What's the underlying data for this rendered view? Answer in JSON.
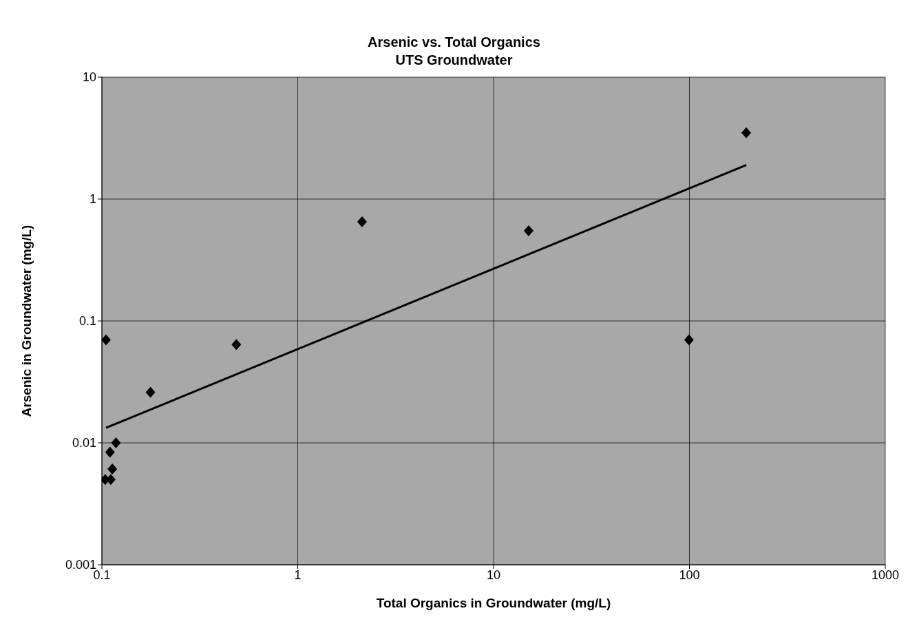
{
  "chart_data": {
    "type": "scatter",
    "title": "Arsenic vs. Total Organics",
    "subtitle": "UTS Groundwater",
    "xlabel": "Total Organics in Groundwater (mg/L)",
    "ylabel": "Arsenic in Groundwater (mg/L)",
    "log": "xy",
    "xlim": [
      0.1,
      1000
    ],
    "ylim": [
      0.001,
      10
    ],
    "xticks": [
      0.1,
      1,
      10,
      100,
      1000
    ],
    "yticks": [
      0.001,
      0.01,
      0.1,
      1,
      10
    ],
    "grid": true,
    "marker": "diamond",
    "series": [
      {
        "color": "#000000",
        "x": [
          0.105,
          0.177,
          0.486,
          2.13,
          15.1,
          99.5,
          195,
          0.118,
          0.11,
          0.113,
          0.104,
          0.111
        ],
        "values": [
          0.07,
          0.026,
          0.064,
          0.65,
          0.55,
          0.07,
          3.5,
          0.01,
          0.0084,
          0.0061,
          0.005,
          0.005
        ]
      },
      {
        "type": "line",
        "color": "#000000",
        "marker": "none",
        "line_style": "solid",
        "x": [
          0.105,
          195
        ],
        "values": [
          0.0133,
          1.9
        ]
      }
    ]
  }
}
